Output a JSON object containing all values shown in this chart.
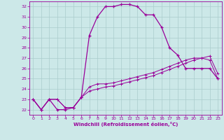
{
  "xlabel": "Windchill (Refroidissement éolien,°C)",
  "background_color": "#cce8e8",
  "line_color": "#990099",
  "grid_color": "#aacccc",
  "xlim": [
    -0.5,
    23.5
  ],
  "ylim": [
    21.5,
    32.5
  ],
  "xticks": [
    0,
    1,
    2,
    3,
    4,
    5,
    6,
    7,
    8,
    9,
    10,
    11,
    12,
    13,
    14,
    15,
    16,
    17,
    18,
    19,
    20,
    21,
    22,
    23
  ],
  "yticks": [
    22,
    23,
    24,
    25,
    26,
    27,
    28,
    29,
    30,
    31,
    32
  ],
  "line1_x": [
    0,
    1,
    2,
    3,
    4,
    5,
    6,
    7,
    8,
    9,
    10,
    11,
    12,
    13,
    14,
    15,
    16,
    17,
    18,
    19,
    20,
    21,
    22,
    23
  ],
  "line1_y": [
    23.0,
    22.0,
    23.0,
    22.0,
    22.0,
    22.2,
    23.2,
    29.2,
    31.0,
    32.0,
    32.0,
    32.2,
    32.2,
    32.0,
    31.2,
    31.2,
    30.0,
    28.0,
    27.3,
    26.0,
    26.0,
    26.0,
    26.0,
    25.0
  ],
  "line2_x": [
    0,
    1,
    2,
    3,
    4,
    5,
    6,
    7,
    8,
    9,
    10,
    11,
    12,
    13,
    14,
    15,
    16,
    17,
    18,
    19,
    20,
    21,
    22,
    23
  ],
  "line2_y": [
    23.0,
    22.0,
    23.0,
    23.0,
    22.2,
    22.2,
    23.2,
    24.2,
    24.5,
    24.5,
    24.6,
    24.8,
    25.0,
    25.2,
    25.4,
    25.6,
    25.9,
    26.2,
    26.5,
    26.8,
    27.0,
    27.0,
    26.8,
    25.0
  ],
  "line3_x": [
    0,
    1,
    2,
    3,
    4,
    5,
    6,
    7,
    8,
    9,
    10,
    11,
    12,
    13,
    14,
    15,
    16,
    17,
    18,
    19,
    20,
    21,
    22,
    23
  ],
  "line3_y": [
    23.0,
    22.0,
    23.0,
    23.0,
    22.2,
    22.2,
    23.2,
    23.8,
    24.0,
    24.2,
    24.3,
    24.5,
    24.7,
    24.9,
    25.1,
    25.3,
    25.6,
    25.9,
    26.2,
    26.5,
    26.8,
    27.0,
    27.2,
    25.5
  ]
}
